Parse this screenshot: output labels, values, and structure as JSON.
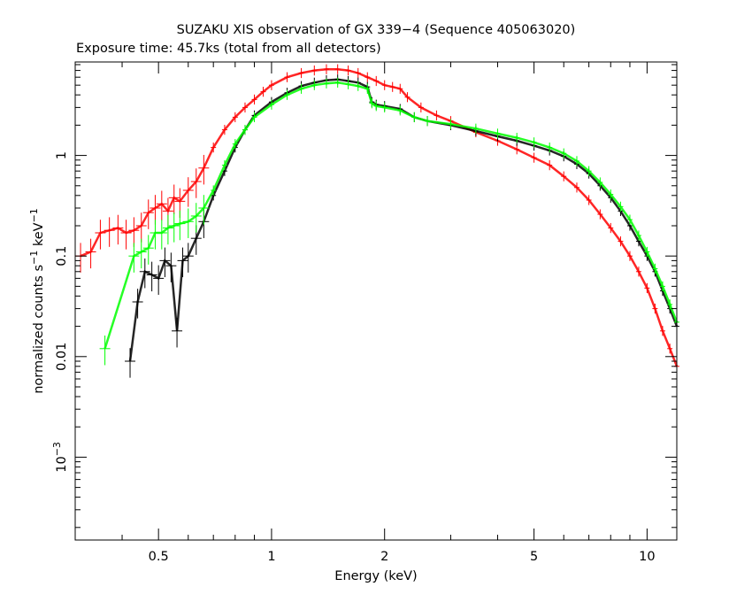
{
  "chart_data": {
    "type": "scatter",
    "title": "SUZAKU XIS observation of GX 339−4 (Sequence 405063020)",
    "subtitle": "Exposure time: 45.7ks (total from all detectors)",
    "xlabel": "Energy (keV)",
    "ylabel_main": "normalized counts s",
    "ylabel_exp1": "−1",
    "ylabel_mid": " keV",
    "ylabel_exp2": "−1",
    "x_scale": "log",
    "y_scale": "log",
    "xlim": [
      0.3,
      12
    ],
    "ylim": [
      0.00015,
      8.5
    ],
    "grid": false,
    "x_ticks": [
      {
        "value": 0.5,
        "label": "0.5"
      },
      {
        "value": 1,
        "label": "1"
      },
      {
        "value": 2,
        "label": "2"
      },
      {
        "value": 5,
        "label": "5"
      },
      {
        "value": 10,
        "label": "10"
      }
    ],
    "y_ticks": [
      {
        "value": 0.001,
        "base": "10",
        "exp": "−3"
      },
      {
        "value": 0.01,
        "label": "0.01"
      },
      {
        "value": 0.1,
        "label": "0.1"
      },
      {
        "value": 1,
        "label": "1"
      }
    ],
    "series": [
      {
        "color": "#ff0000",
        "points": [
          [
            0.31,
            0.1
          ],
          [
            0.33,
            0.11
          ],
          [
            0.35,
            0.17
          ],
          [
            0.37,
            0.18
          ],
          [
            0.39,
            0.19
          ],
          [
            0.41,
            0.17
          ],
          [
            0.43,
            0.18
          ],
          [
            0.45,
            0.2
          ],
          [
            0.47,
            0.27
          ],
          [
            0.49,
            0.3
          ],
          [
            0.51,
            0.33
          ],
          [
            0.53,
            0.28
          ],
          [
            0.55,
            0.38
          ],
          [
            0.57,
            0.35
          ],
          [
            0.6,
            0.45
          ],
          [
            0.63,
            0.55
          ],
          [
            0.66,
            0.75
          ],
          [
            0.7,
            1.2
          ],
          [
            0.75,
            1.8
          ],
          [
            0.8,
            2.4
          ],
          [
            0.85,
            3.0
          ],
          [
            0.9,
            3.6
          ],
          [
            0.95,
            4.3
          ],
          [
            1.0,
            5.0
          ],
          [
            1.1,
            6.0
          ],
          [
            1.2,
            6.6
          ],
          [
            1.3,
            7.0
          ],
          [
            1.4,
            7.2
          ],
          [
            1.5,
            7.2
          ],
          [
            1.6,
            7.0
          ],
          [
            1.7,
            6.6
          ],
          [
            1.8,
            6.0
          ],
          [
            1.9,
            5.5
          ],
          [
            2.0,
            5.0
          ],
          [
            2.1,
            4.8
          ],
          [
            2.2,
            4.6
          ],
          [
            2.3,
            3.8
          ],
          [
            2.5,
            3.0
          ],
          [
            2.75,
            2.5
          ],
          [
            3.0,
            2.2
          ],
          [
            3.5,
            1.7
          ],
          [
            4.0,
            1.4
          ],
          [
            4.5,
            1.15
          ],
          [
            5.0,
            0.95
          ],
          [
            5.5,
            0.8
          ],
          [
            6.0,
            0.62
          ],
          [
            6.5,
            0.48
          ],
          [
            7.0,
            0.36
          ],
          [
            7.5,
            0.26
          ],
          [
            8.0,
            0.19
          ],
          [
            8.5,
            0.14
          ],
          [
            9.0,
            0.1
          ],
          [
            9.5,
            0.07
          ],
          [
            10.0,
            0.048
          ],
          [
            10.5,
            0.03
          ],
          [
            11.0,
            0.018
          ],
          [
            11.5,
            0.012
          ],
          [
            12.0,
            0.008
          ]
        ]
      },
      {
        "color": "#000000",
        "points": [
          [
            0.42,
            0.009
          ],
          [
            0.44,
            0.035
          ],
          [
            0.46,
            0.07
          ],
          [
            0.48,
            0.065
          ],
          [
            0.5,
            0.06
          ],
          [
            0.52,
            0.09
          ],
          [
            0.54,
            0.08
          ],
          [
            0.56,
            0.018
          ],
          [
            0.58,
            0.09
          ],
          [
            0.6,
            0.1
          ],
          [
            0.63,
            0.15
          ],
          [
            0.66,
            0.22
          ],
          [
            0.7,
            0.4
          ],
          [
            0.75,
            0.7
          ],
          [
            0.8,
            1.2
          ],
          [
            0.85,
            1.8
          ],
          [
            0.9,
            2.5
          ],
          [
            1.0,
            3.4
          ],
          [
            1.1,
            4.2
          ],
          [
            1.2,
            4.9
          ],
          [
            1.3,
            5.3
          ],
          [
            1.4,
            5.6
          ],
          [
            1.5,
            5.7
          ],
          [
            1.6,
            5.5
          ],
          [
            1.7,
            5.3
          ],
          [
            1.8,
            4.8
          ],
          [
            1.85,
            3.4
          ],
          [
            1.9,
            3.2
          ],
          [
            2.0,
            3.1
          ],
          [
            2.2,
            2.9
          ],
          [
            2.4,
            2.4
          ],
          [
            2.6,
            2.2
          ],
          [
            3.0,
            2.0
          ],
          [
            3.5,
            1.75
          ],
          [
            4.0,
            1.55
          ],
          [
            4.5,
            1.4
          ],
          [
            5.0,
            1.25
          ],
          [
            5.5,
            1.12
          ],
          [
            6.0,
            0.98
          ],
          [
            6.5,
            0.82
          ],
          [
            7.0,
            0.66
          ],
          [
            7.5,
            0.5
          ],
          [
            8.0,
            0.38
          ],
          [
            8.5,
            0.28
          ],
          [
            9.0,
            0.2
          ],
          [
            9.5,
            0.14
          ],
          [
            10.0,
            0.1
          ],
          [
            10.5,
            0.07
          ],
          [
            11.0,
            0.045
          ],
          [
            11.5,
            0.03
          ],
          [
            12.0,
            0.02
          ]
        ]
      },
      {
        "color": "#00ff00",
        "points": [
          [
            0.36,
            0.012
          ],
          [
            0.43,
            0.1
          ],
          [
            0.45,
            0.11
          ],
          [
            0.47,
            0.12
          ],
          [
            0.49,
            0.17
          ],
          [
            0.51,
            0.17
          ],
          [
            0.53,
            0.19
          ],
          [
            0.55,
            0.2
          ],
          [
            0.57,
            0.21
          ],
          [
            0.6,
            0.22
          ],
          [
            0.63,
            0.25
          ],
          [
            0.66,
            0.3
          ],
          [
            0.7,
            0.45
          ],
          [
            0.75,
            0.8
          ],
          [
            0.8,
            1.3
          ],
          [
            0.85,
            1.8
          ],
          [
            0.9,
            2.4
          ],
          [
            1.0,
            3.2
          ],
          [
            1.1,
            4.0
          ],
          [
            1.2,
            4.6
          ],
          [
            1.3,
            5.0
          ],
          [
            1.4,
            5.2
          ],
          [
            1.5,
            5.3
          ],
          [
            1.6,
            5.1
          ],
          [
            1.7,
            4.9
          ],
          [
            1.8,
            4.6
          ],
          [
            1.85,
            3.3
          ],
          [
            1.9,
            3.1
          ],
          [
            2.0,
            3.0
          ],
          [
            2.2,
            2.8
          ],
          [
            2.4,
            2.4
          ],
          [
            2.6,
            2.2
          ],
          [
            3.0,
            2.05
          ],
          [
            3.5,
            1.85
          ],
          [
            4.0,
            1.65
          ],
          [
            4.5,
            1.5
          ],
          [
            5.0,
            1.35
          ],
          [
            5.5,
            1.2
          ],
          [
            6.0,
            1.05
          ],
          [
            6.5,
            0.88
          ],
          [
            7.0,
            0.7
          ],
          [
            7.5,
            0.54
          ],
          [
            8.0,
            0.41
          ],
          [
            8.5,
            0.31
          ],
          [
            9.0,
            0.23
          ],
          [
            9.5,
            0.16
          ],
          [
            10.0,
            0.11
          ],
          [
            10.5,
            0.075
          ],
          [
            11.0,
            0.05
          ],
          [
            11.5,
            0.033
          ],
          [
            12.0,
            0.022
          ]
        ]
      }
    ]
  }
}
